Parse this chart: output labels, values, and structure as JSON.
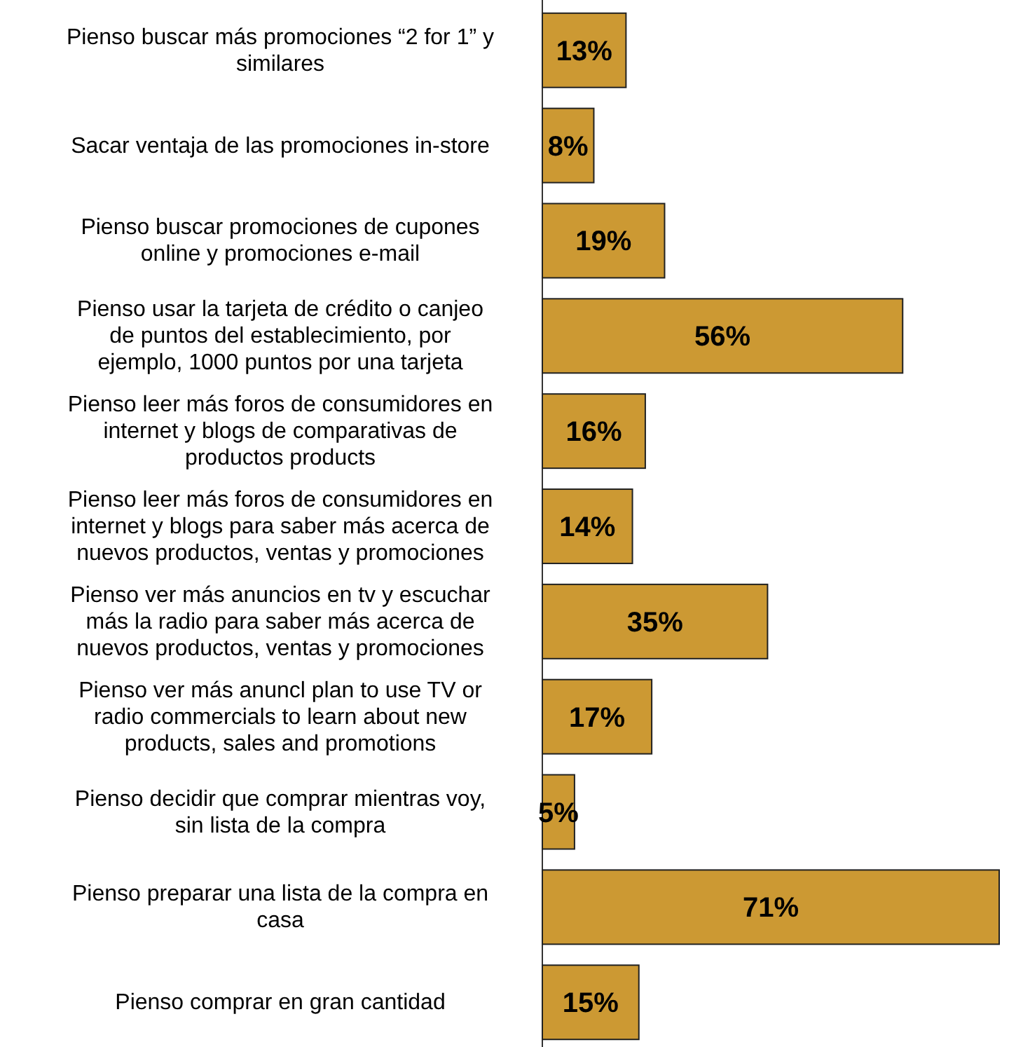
{
  "chart_data": {
    "type": "bar",
    "orientation": "horizontal",
    "categories": [
      "Pienso buscar más promociones “2 for 1” y similares",
      "Sacar ventaja de las promociones in-store",
      "Pienso buscar promociones de cupones online y promociones e-mail",
      "Pienso usar la tarjeta de crédito o canjeo de puntos del establecimiento, por ejemplo, 1000 puntos por una tarjeta",
      "Pienso leer más foros de consumidores en internet y blogs de comparativas de productos products",
      "Pienso leer más foros de consumidores en internet y blogs para saber más acerca de nuevos productos, ventas y promociones",
      "Pienso ver más anuncios en tv y escuchar más la radio para saber más acerca de nuevos productos, ventas y promociones",
      "Pienso ver más anuncl plan to use TV or radio commercials to learn about new products, sales and promotions",
      "Pienso decidir que comprar mientras voy, sin lista de la compra",
      "Pienso preparar una lista de la compra en casa",
      "Pienso comprar en gran cantidad"
    ],
    "values": [
      13,
      8,
      19,
      56,
      16,
      14,
      35,
      17,
      5,
      71,
      15
    ],
    "value_labels": [
      "13%",
      "8%",
      "19%",
      "56%",
      "16%",
      "14%",
      "35%",
      "17%",
      "5%",
      "71%",
      "15%"
    ],
    "color": "#cc9933",
    "xlim": [
      0,
      71
    ],
    "tick_labels": "y"
  }
}
